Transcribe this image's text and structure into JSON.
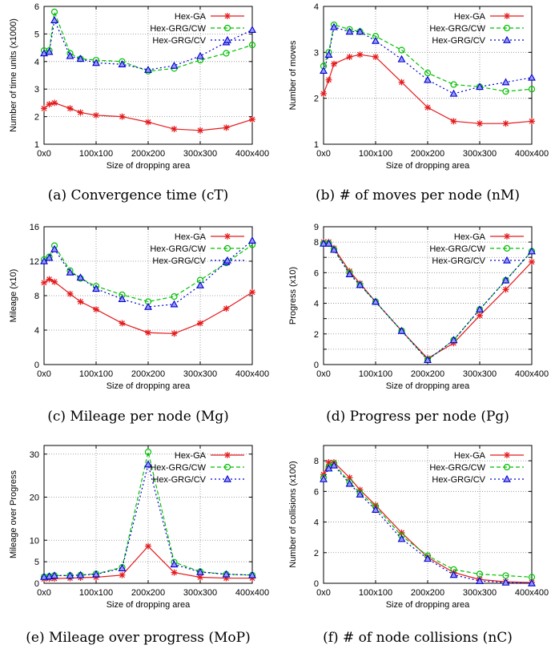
{
  "series_styles": [
    {
      "name": "Hex-GA",
      "color": "#e41a1c",
      "dash": "",
      "marker": "star"
    },
    {
      "name": "Hex-GRG/CW",
      "color": "#00c000",
      "dash": "5,3",
      "marker": "circle"
    },
    {
      "name": "Hex-GRG/CV",
      "color": "#0000cc",
      "dash": "2,3",
      "marker": "triangle"
    }
  ],
  "chart_data": [
    {
      "type": "line",
      "caption": "(a) Convergence time (cT)",
      "xlabel": "Size of dropping area",
      "ylabel": "Number of time units (x1000)",
      "x": [
        0,
        10,
        20,
        50,
        70,
        100,
        150,
        200,
        250,
        300,
        350,
        400
      ],
      "xticks": [
        0,
        100,
        200,
        300,
        400
      ],
      "xtick_labels": [
        "0x0",
        "100x100",
        "200x200",
        "300x300",
        "400x400"
      ],
      "xlim": [
        0,
        400
      ],
      "ylim": [
        1,
        6
      ],
      "yticks": [
        1,
        2,
        3,
        4,
        5,
        6
      ],
      "ytick_labels": [
        "1",
        "2",
        "3",
        "4",
        "5",
        "6"
      ],
      "legend": "top-right",
      "grid": true,
      "series": [
        {
          "name": "Hex-GA",
          "values": [
            2.3,
            2.45,
            2.5,
            2.3,
            2.15,
            2.05,
            2.0,
            1.8,
            1.55,
            1.5,
            1.6,
            1.9
          ]
        },
        {
          "name": "Hex-GRG/CW",
          "values": [
            4.4,
            4.4,
            5.8,
            4.3,
            4.1,
            4.05,
            4.0,
            3.65,
            3.75,
            4.05,
            4.3,
            4.6
          ]
        },
        {
          "name": "Hex-GRG/CV",
          "values": [
            4.3,
            4.35,
            5.5,
            4.2,
            4.1,
            3.95,
            3.9,
            3.7,
            3.85,
            4.2,
            4.7,
            5.15
          ]
        }
      ]
    },
    {
      "type": "line",
      "caption": "(b) # of moves per node (nM)",
      "xlabel": "Size of dropping area",
      "ylabel": "Number of moves",
      "x": [
        0,
        10,
        20,
        50,
        70,
        100,
        150,
        200,
        250,
        300,
        350,
        400
      ],
      "xticks": [
        0,
        100,
        200,
        300,
        400
      ],
      "xtick_labels": [
        "0x0",
        "100x100",
        "200x200",
        "300x300",
        "400x400"
      ],
      "xlim": [
        0,
        400
      ],
      "ylim": [
        1,
        4
      ],
      "yticks": [
        1,
        2,
        3,
        4
      ],
      "ytick_labels": [
        "1",
        "2",
        "3",
        "4"
      ],
      "legend": "top-right",
      "grid": true,
      "series": [
        {
          "name": "Hex-GA",
          "values": [
            2.1,
            2.4,
            2.75,
            2.9,
            2.95,
            2.9,
            2.35,
            1.8,
            1.5,
            1.45,
            1.45,
            1.5
          ]
        },
        {
          "name": "Hex-GRG/CW",
          "values": [
            2.7,
            3.0,
            3.6,
            3.5,
            3.45,
            3.35,
            3.05,
            2.55,
            2.3,
            2.25,
            2.15,
            2.2
          ]
        },
        {
          "name": "Hex-GRG/CV",
          "values": [
            2.6,
            2.95,
            3.55,
            3.45,
            3.45,
            3.25,
            2.85,
            2.4,
            2.1,
            2.25,
            2.35,
            2.45
          ]
        }
      ]
    },
    {
      "type": "line",
      "caption": "(c) Mileage per node (Mg)",
      "xlabel": "Size of dropping area",
      "ylabel": "Mileage (x10)",
      "x": [
        0,
        10,
        20,
        50,
        70,
        100,
        150,
        200,
        250,
        300,
        350,
        400
      ],
      "xticks": [
        0,
        100,
        200,
        300,
        400
      ],
      "xtick_labels": [
        "0x0",
        "100x100",
        "200x200",
        "300x300",
        "400x400"
      ],
      "xlim": [
        0,
        400
      ],
      "ylim": [
        0,
        16
      ],
      "yticks": [
        0,
        4,
        8,
        12,
        16
      ],
      "ytick_labels": [
        "0",
        "4",
        "8",
        "12",
        "16"
      ],
      "legend": "top-right",
      "grid": true,
      "series": [
        {
          "name": "Hex-GA",
          "values": [
            9.5,
            9.9,
            9.6,
            8.2,
            7.3,
            6.4,
            4.8,
            3.7,
            3.6,
            4.8,
            6.5,
            8.4
          ]
        },
        {
          "name": "Hex-GRG/CW",
          "values": [
            12.2,
            12.5,
            13.8,
            10.9,
            10.0,
            9.1,
            8.1,
            7.3,
            7.9,
            9.8,
            11.8,
            13.9
          ]
        },
        {
          "name": "Hex-GRG/CV",
          "values": [
            12.0,
            12.4,
            13.4,
            10.7,
            10.1,
            8.8,
            7.6,
            6.7,
            7.0,
            9.2,
            11.9,
            14.4
          ]
        }
      ]
    },
    {
      "type": "line",
      "caption": "(d) Progress per node (Pg)",
      "xlabel": "Size of dropping area",
      "ylabel": "Progress (x10)",
      "x": [
        0,
        10,
        20,
        50,
        70,
        100,
        150,
        200,
        250,
        300,
        350,
        400
      ],
      "xticks": [
        0,
        100,
        200,
        300,
        400
      ],
      "xtick_labels": [
        "0x0",
        "100x100",
        "200x200",
        "300x300",
        "400x400"
      ],
      "xlim": [
        0,
        400
      ],
      "ylim": [
        0,
        9
      ],
      "yticks": [
        0,
        1,
        2,
        3,
        4,
        5,
        6,
        7,
        8,
        9
      ],
      "ytick_labels": [
        "0",
        "",
        "2",
        "",
        "4",
        "",
        "6",
        "",
        "8",
        "9"
      ],
      "legend": "top-right",
      "grid": true,
      "series": [
        {
          "name": "Hex-GA",
          "values": [
            8.0,
            8.0,
            7.6,
            6.1,
            5.3,
            4.1,
            2.2,
            0.4,
            1.4,
            3.2,
            4.9,
            6.7
          ]
        },
        {
          "name": "Hex-GRG/CW",
          "values": [
            7.9,
            7.9,
            7.5,
            6.0,
            5.2,
            4.1,
            2.2,
            0.3,
            1.6,
            3.6,
            5.5,
            7.4
          ]
        },
        {
          "name": "Hex-GRG/CV",
          "values": [
            7.9,
            7.9,
            7.5,
            5.9,
            5.2,
            4.1,
            2.2,
            0.3,
            1.6,
            3.6,
            5.5,
            7.4
          ]
        }
      ]
    },
    {
      "type": "line",
      "caption": "(e) Mileage over progress (MoP)",
      "xlabel": "Size of dropping area",
      "ylabel": "Mileage over Progress",
      "x": [
        0,
        10,
        20,
        50,
        70,
        100,
        150,
        200,
        250,
        300,
        350,
        400
      ],
      "xticks": [
        0,
        100,
        200,
        300,
        400
      ],
      "xtick_labels": [
        "0x0",
        "100x100",
        "200x200",
        "300x300",
        "400x400"
      ],
      "xlim": [
        0,
        400
      ],
      "ylim": [
        0,
        32
      ],
      "yticks": [
        0,
        5,
        10,
        20,
        30
      ],
      "ytick_labels": [
        "0",
        "5",
        "10",
        "20",
        "30"
      ],
      "legend": "top-right",
      "grid": true,
      "series": [
        {
          "name": "Hex-GA",
          "values": [
            1.0,
            1.1,
            1.1,
            1.2,
            1.3,
            1.4,
            1.9,
            8.6,
            2.5,
            1.4,
            1.2,
            1.2
          ]
        },
        {
          "name": "Hex-GRG/CW",
          "values": [
            1.5,
            1.6,
            1.8,
            1.8,
            1.9,
            2.2,
            3.7,
            30.5,
            4.9,
            2.7,
            2.1,
            1.9
          ]
        },
        {
          "name": "Hex-GRG/CV",
          "values": [
            1.5,
            1.6,
            1.8,
            1.8,
            1.9,
            2.1,
            3.5,
            27.6,
            4.4,
            2.6,
            2.1,
            1.9
          ]
        }
      ]
    },
    {
      "type": "line",
      "caption": "(f) # of node collisions (nC)",
      "xlabel": "Size of dropping area",
      "ylabel": "Number of collisions (x100)",
      "x": [
        0,
        10,
        20,
        50,
        70,
        100,
        150,
        200,
        250,
        300,
        350,
        400
      ],
      "xticks": [
        0,
        100,
        200,
        300,
        400
      ],
      "xtick_labels": [
        "0x0",
        "100x100",
        "200x200",
        "300x300",
        "400x400"
      ],
      "xlim": [
        0,
        400
      ],
      "ylim": [
        0,
        9
      ],
      "yticks": [
        0,
        2,
        4,
        6,
        8
      ],
      "ytick_labels": [
        "0",
        "2",
        "4",
        "6",
        "8"
      ],
      "legend": "top-right",
      "grid": true,
      "series": [
        {
          "name": "Hex-GA",
          "values": [
            7.1,
            7.9,
            7.9,
            6.9,
            6.1,
            5.1,
            3.3,
            1.7,
            0.7,
            0.25,
            0.1,
            0.05
          ]
        },
        {
          "name": "Hex-GRG/CW",
          "values": [
            6.9,
            7.6,
            7.8,
            6.6,
            5.9,
            5.0,
            3.1,
            1.8,
            0.9,
            0.6,
            0.5,
            0.4
          ]
        },
        {
          "name": "Hex-GRG/CV",
          "values": [
            6.8,
            7.5,
            7.7,
            6.5,
            5.8,
            4.8,
            2.9,
            1.6,
            0.55,
            0.15,
            0.05,
            0.0
          ]
        }
      ]
    }
  ]
}
